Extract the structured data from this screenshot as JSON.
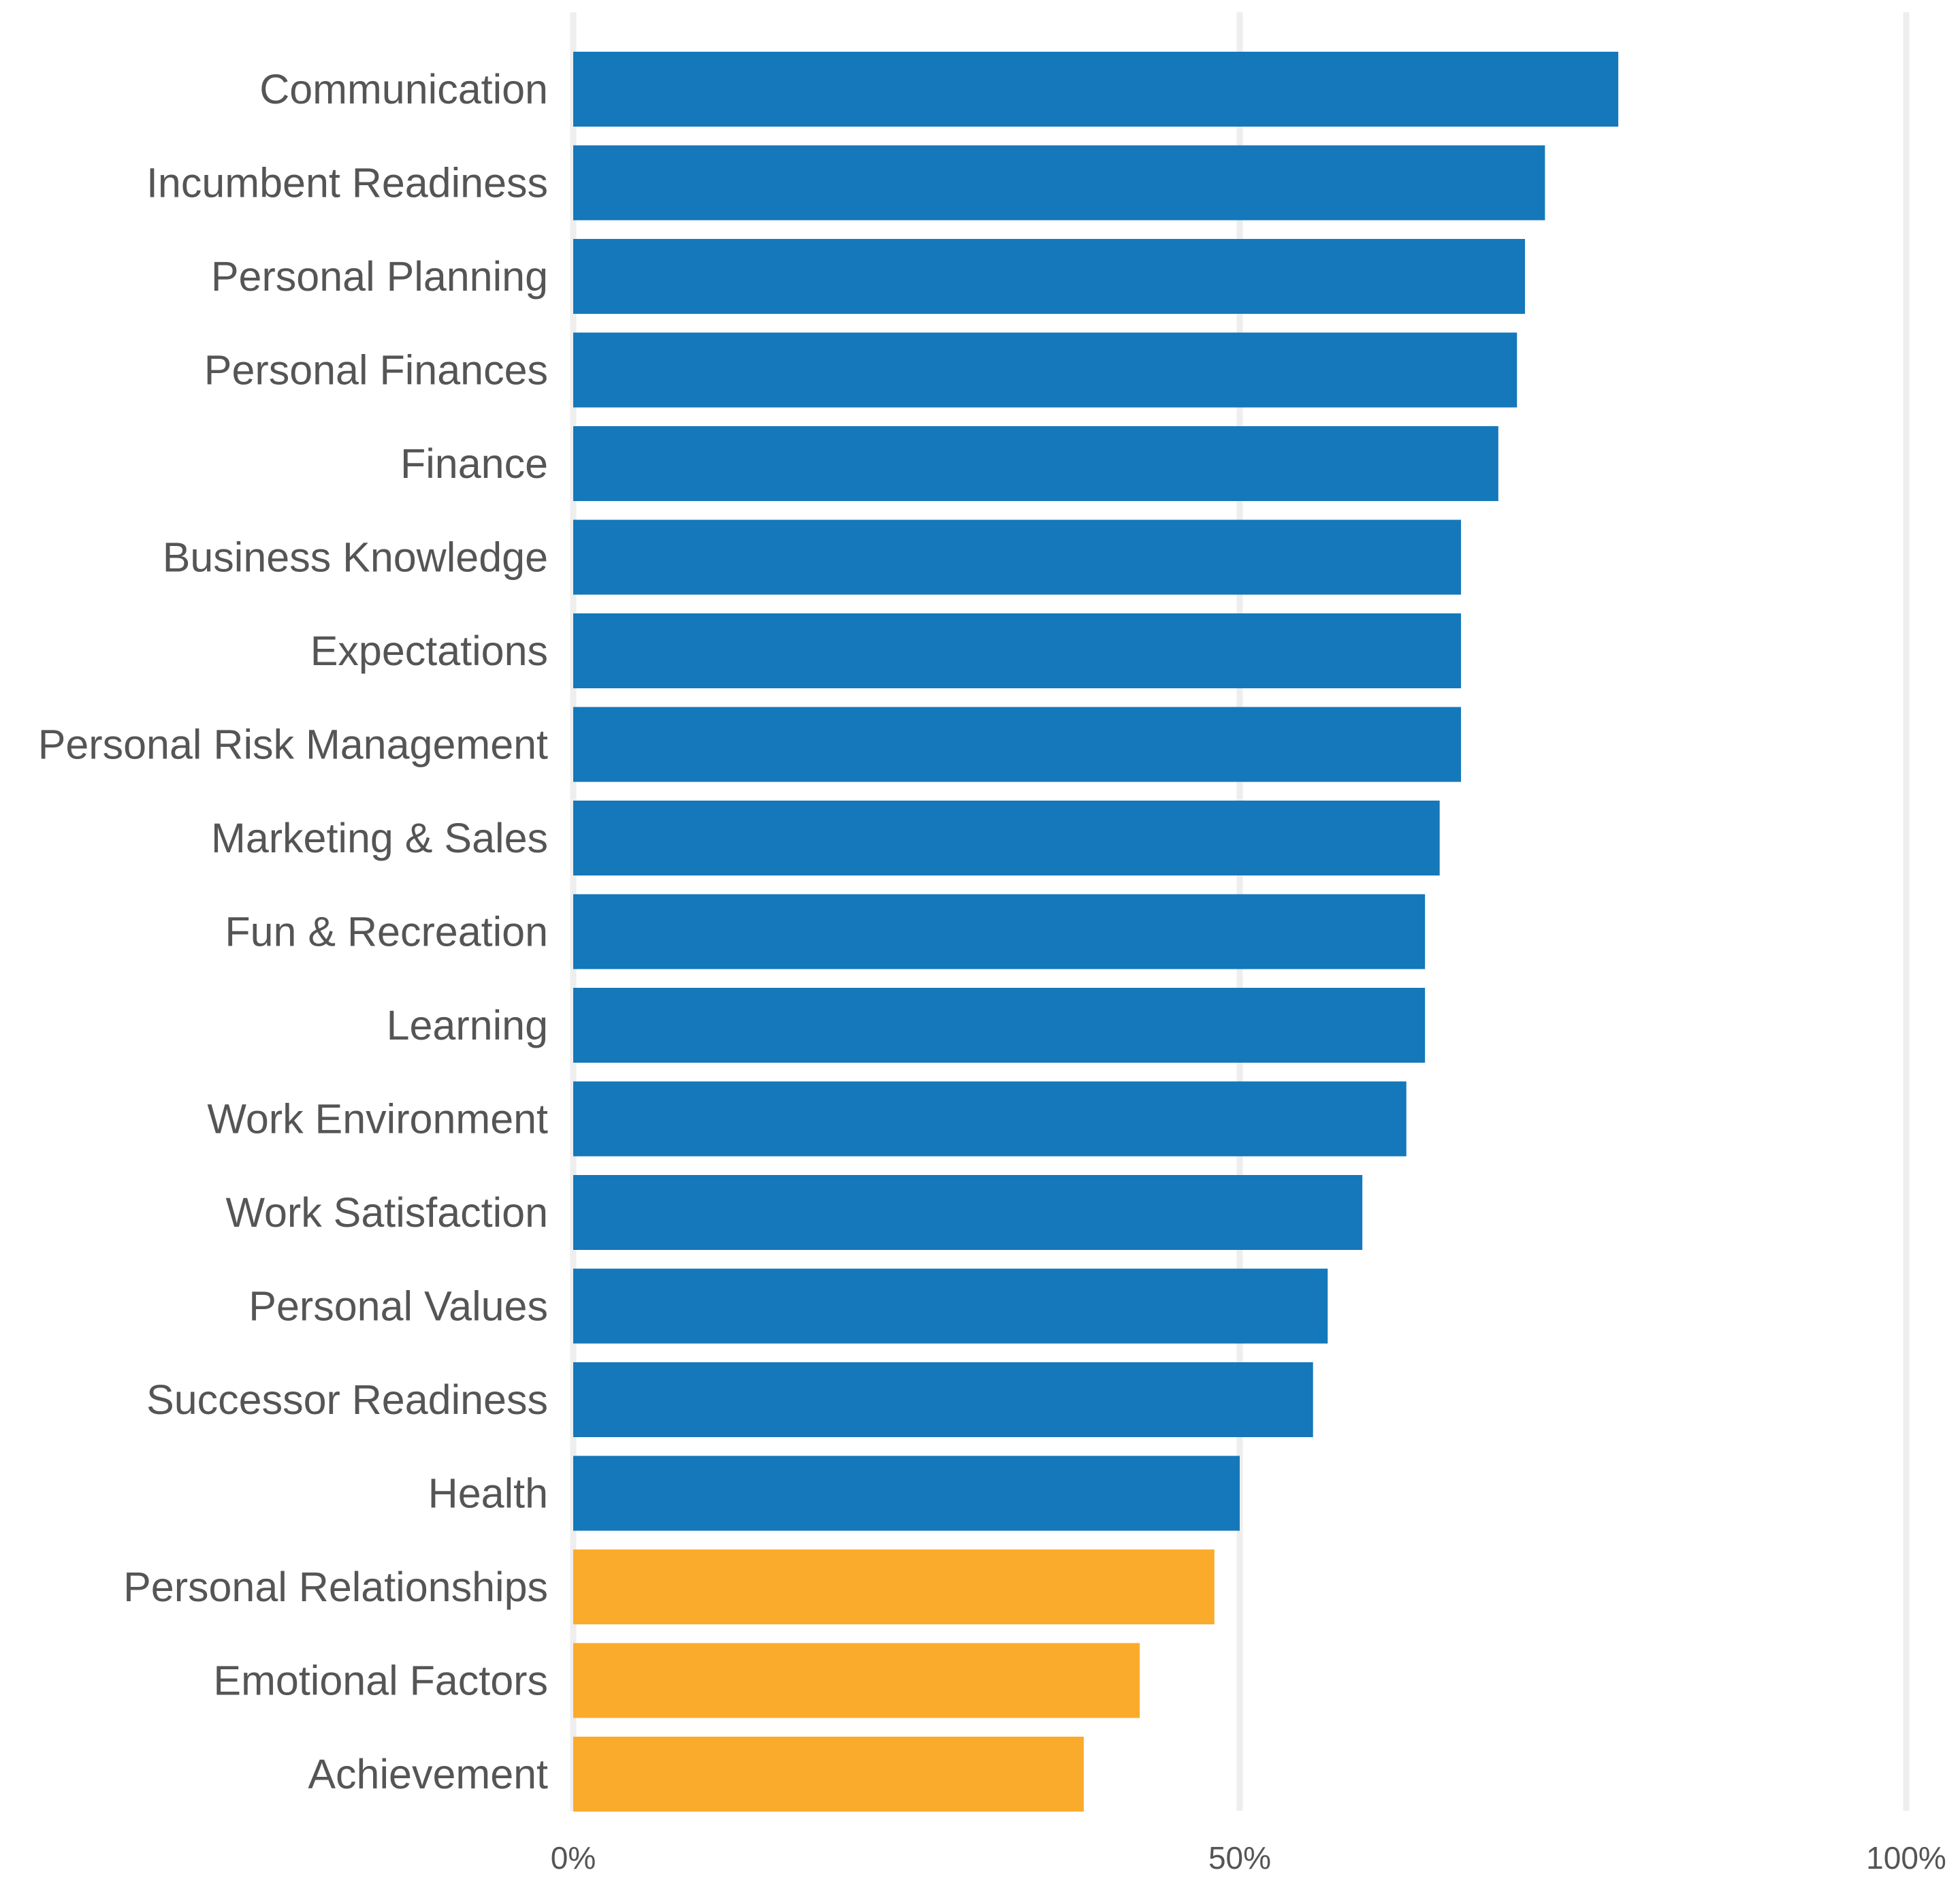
{
  "chart_data": {
    "type": "bar",
    "orientation": "horizontal",
    "categories": [
      "Communication",
      "Incumbent Readiness",
      "Personal Planning",
      "Personal Finances",
      "Finance",
      "Business Knowledge",
      "Expectations",
      "Personal Risk Management",
      "Marketing & Sales",
      "Fun & Recreation",
      "Learning",
      "Work Environment",
      "Work Satisfaction",
      "Personal Values",
      "Successor Readiness",
      "Health",
      "Personal Relationships",
      "Emotional Factors",
      "Achievement"
    ],
    "values": [
      78.4,
      72.9,
      71.4,
      70.8,
      69.4,
      66.6,
      66.6,
      66.6,
      65.0,
      63.9,
      63.9,
      62.5,
      59.2,
      56.6,
      55.5,
      50.0,
      48.1,
      42.5,
      38.3
    ],
    "bar_colors": [
      "#1478ba",
      "#1478ba",
      "#1478ba",
      "#1478ba",
      "#1478ba",
      "#1478ba",
      "#1478ba",
      "#1478ba",
      "#1478ba",
      "#1478ba",
      "#1478ba",
      "#1478ba",
      "#1478ba",
      "#1478ba",
      "#1478ba",
      "#1478ba",
      "#fbab2c",
      "#fbab2c",
      "#fbab2c"
    ],
    "title": "",
    "xlabel": "",
    "ylabel": "",
    "xlim": [
      0,
      100
    ],
    "x_ticks": [
      0,
      50,
      100
    ],
    "x_tick_labels": [
      "0%",
      "50%",
      "100%"
    ],
    "grid": true,
    "legend": false
  },
  "colors": {
    "primary_bar": "#1478ba",
    "highlight_bar": "#fbab2c",
    "grid": "#eeeeee",
    "label_text": "#555555",
    "background": "#ffffff"
  }
}
